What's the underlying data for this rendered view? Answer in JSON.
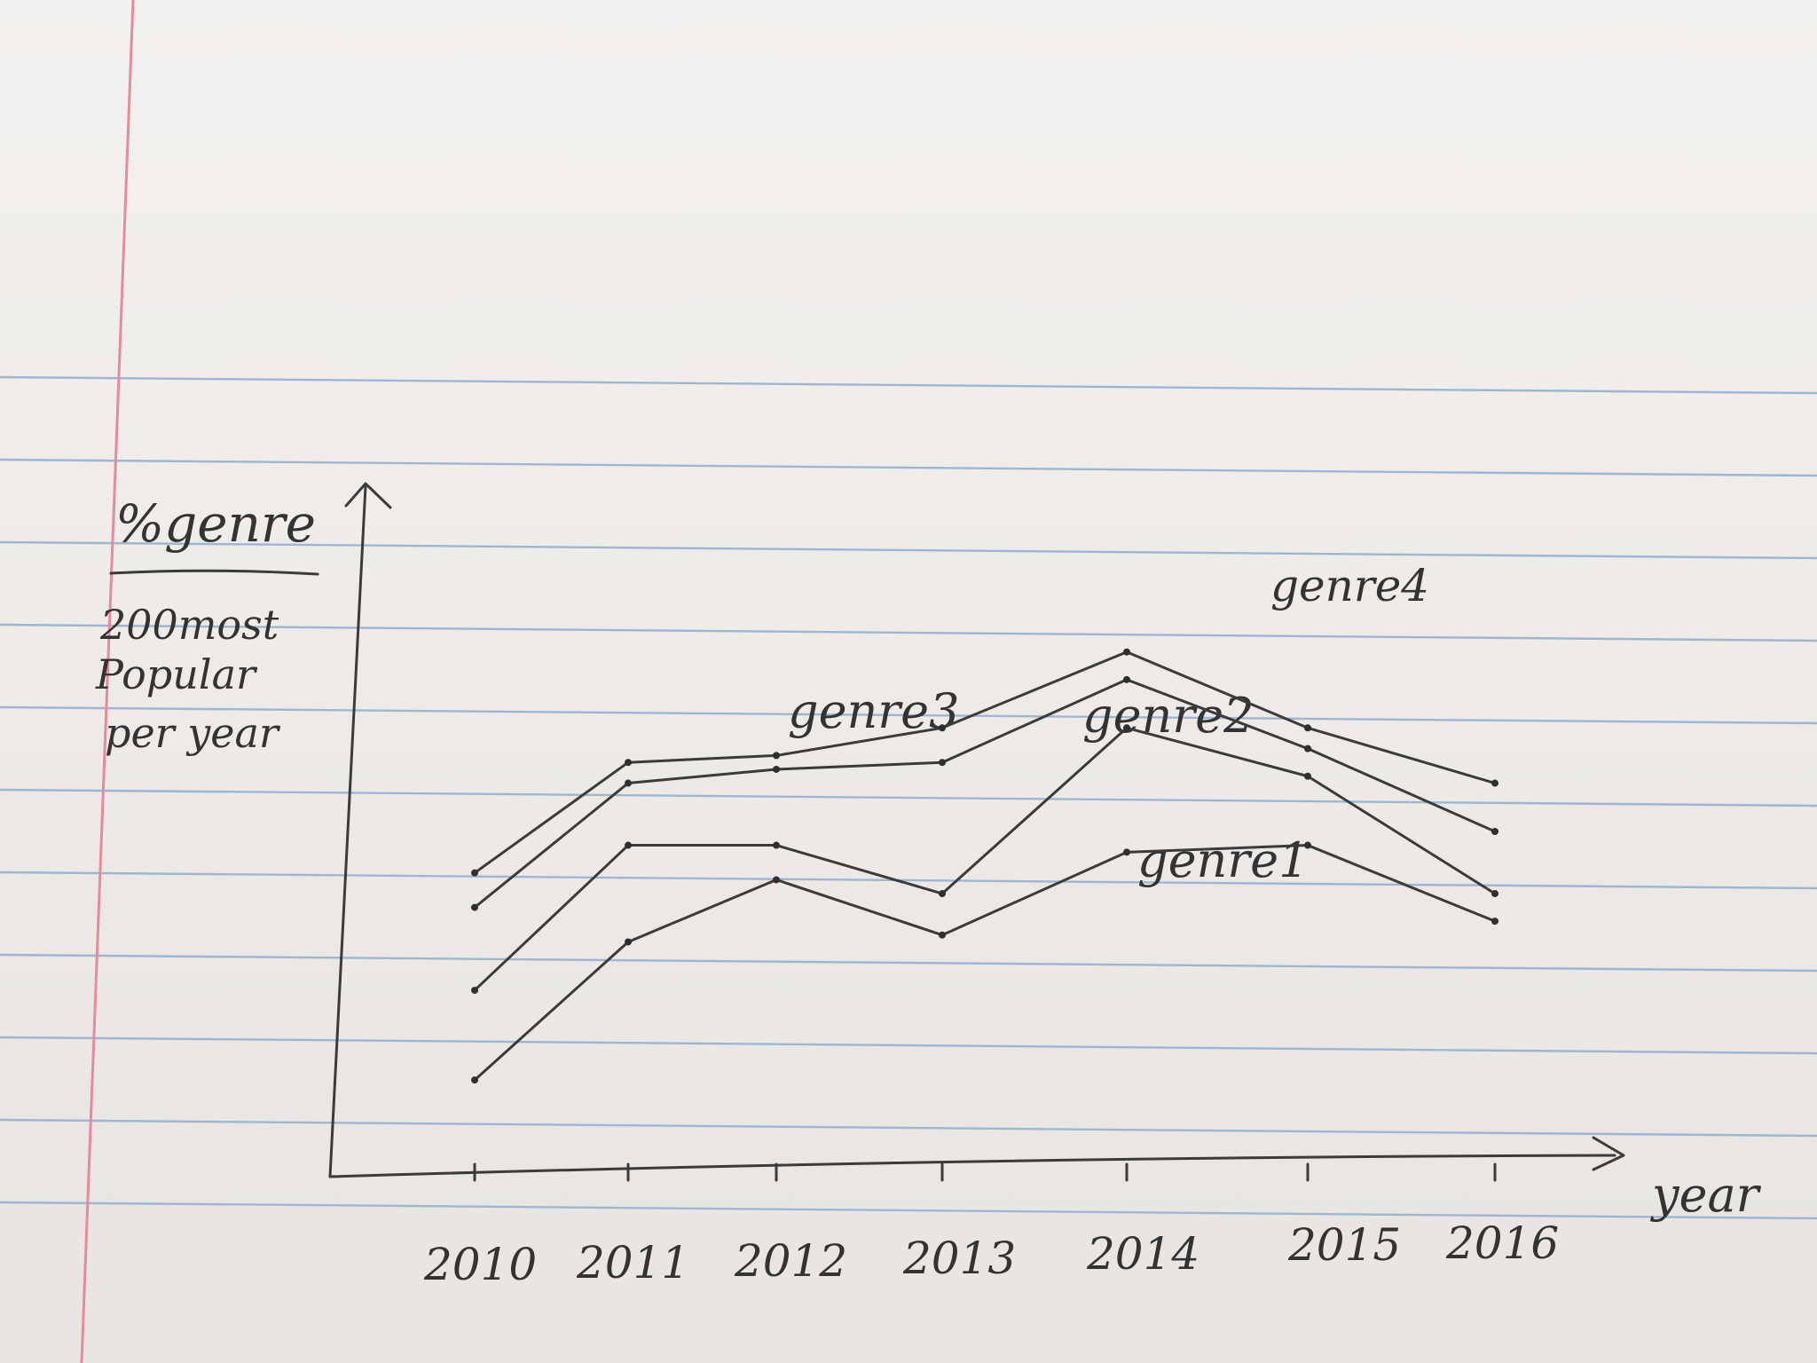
{
  "chart_data": {
    "type": "line",
    "title": "",
    "ylabel": "%genre / 200 most popular per year",
    "ylabel_parts": {
      "numerator": "%genre",
      "denominator_lines": [
        "200most",
        "Popular",
        "per year"
      ]
    },
    "xlabel": "year",
    "x": [
      "2010",
      "2011",
      "2012",
      "2013",
      "2014",
      "2015",
      "2016"
    ],
    "x_tick_labels": [
      "2010",
      "2011",
      "2012",
      "2013",
      "2014",
      "2015",
      "2016"
    ],
    "series": [
      {
        "name": "genre1",
        "values": [
          14,
          34,
          43,
          35,
          47,
          48,
          37
        ]
      },
      {
        "name": "genre2",
        "values": [
          27,
          48,
          48,
          41,
          65,
          58,
          41
        ]
      },
      {
        "name": "genre3",
        "values": [
          39,
          57,
          59,
          60,
          72,
          62,
          50
        ]
      },
      {
        "name": "genre4",
        "values": [
          44,
          60,
          61,
          65,
          76,
          65,
          57
        ]
      }
    ],
    "series_labels": {
      "genre1": "genre1",
      "genre2": "genre2",
      "genre3": "genre3",
      "genre4": "genre4"
    },
    "ylim": [
      0,
      100
    ],
    "grid": false,
    "legend": "inline labels"
  }
}
